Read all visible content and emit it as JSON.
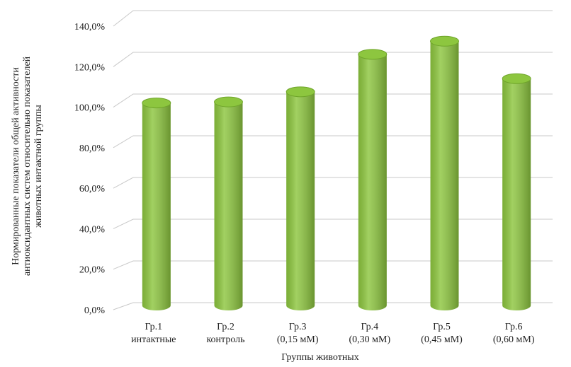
{
  "chart_data": {
    "type": "bar",
    "y_label": [
      "Нормированные показатели общей активности",
      "антиоксидантных систем относительно показателей",
      "животных интактной группы"
    ],
    "x_label": "Группы животных",
    "categories": [
      [
        "Гр.1",
        "интактные"
      ],
      [
        "Гр.2",
        "контроль"
      ],
      [
        "Гр.3",
        "(0,15 мМ)"
      ],
      [
        "Гр.4",
        "(0,30 мМ)"
      ],
      [
        "Гр.5",
        "(0,45 мМ)"
      ],
      [
        "Гр.6",
        "(0,60 мМ)"
      ]
    ],
    "values": [
      100,
      100.5,
      105.5,
      124,
      130.5,
      112
    ],
    "color": "#8dc63f",
    "ylim": [
      0,
      140
    ],
    "yticks": [
      {
        "value": 0,
        "label": "0,0%"
      },
      {
        "value": 20,
        "label": "20,0%"
      },
      {
        "value": 40,
        "label": "40,0%"
      },
      {
        "value": 60,
        "label": "60,0%"
      },
      {
        "value": 80,
        "label": "80,0%"
      },
      {
        "value": 100,
        "label": "100,0%"
      },
      {
        "value": 120,
        "label": "120,0%"
      },
      {
        "value": 140,
        "label": "140,0%"
      }
    ],
    "grid": true
  }
}
